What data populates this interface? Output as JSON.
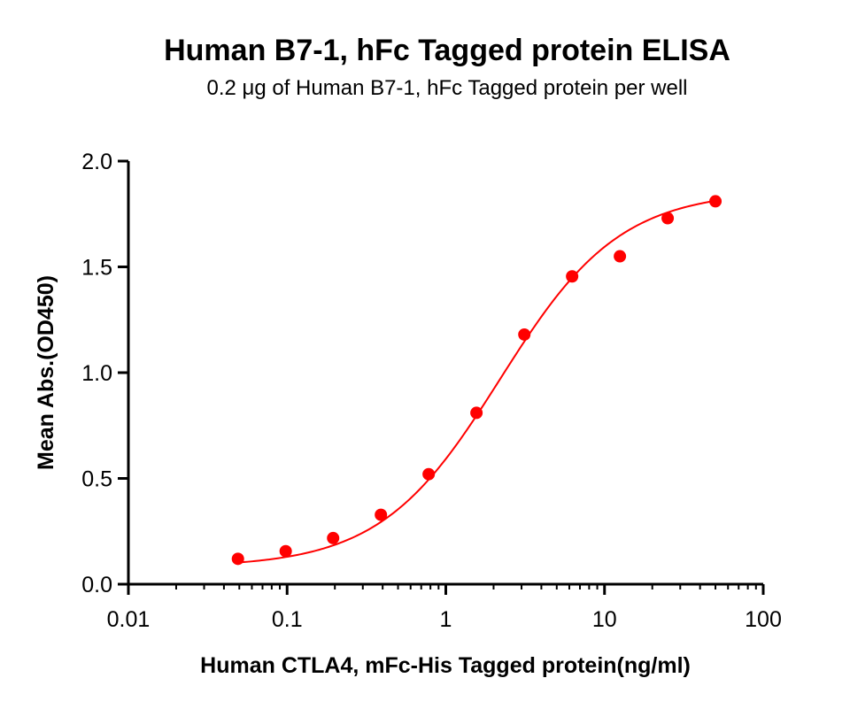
{
  "chart_data": {
    "type": "scatter",
    "title": "Human B7-1, hFc Tagged protein ELISA",
    "subtitle": "0.2 μg of Human B7-1, hFc Tagged protein per well",
    "xlabel": "Human CTLA4, mFc-His Tagged protein(ng/ml)",
    "ylabel": "Mean Abs.(OD450)",
    "x_scale": "log",
    "xlim": [
      0.01,
      100
    ],
    "ylim": [
      0,
      2.0
    ],
    "x_ticks": [
      "0.01",
      "0.1",
      "1",
      "10",
      "100"
    ],
    "y_ticks": [
      "0.0",
      "0.5",
      "1.0",
      "1.5",
      "2.0"
    ],
    "grid": false,
    "color": "#ff0000",
    "series": [
      {
        "x": [
          0.049,
          0.098,
          0.195,
          0.39,
          0.78,
          1.56,
          3.125,
          6.25,
          12.5,
          25,
          50
        ],
        "y": [
          0.12,
          0.156,
          0.218,
          0.328,
          0.52,
          0.81,
          1.18,
          1.455,
          1.55,
          1.73,
          1.81
        ]
      }
    ],
    "fit_curve": {
      "model": "4PL",
      "bottom": 0.08,
      "top": 1.86,
      "ec50": 2.2,
      "hill": 1.15
    }
  }
}
